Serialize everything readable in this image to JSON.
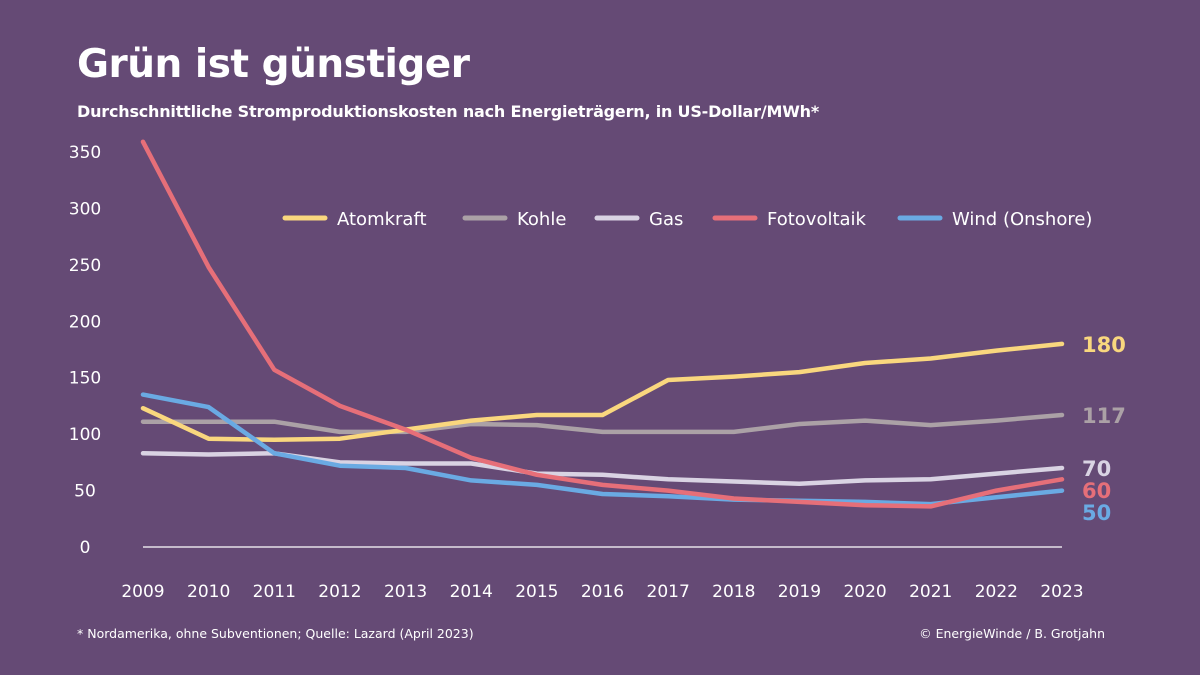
{
  "header": {
    "title": "Grün ist günstiger",
    "subtitle": "Durchschnittliche Stromproduktionskosten nach Energieträgern, in US-Dollar/MWh*"
  },
  "footer": {
    "footnote": "* Nordamerika, ohne Subventionen; Quelle: Lazard (April 2023)",
    "credit": "© EnergieWinde / B. Grotjahn"
  },
  "chart_data": {
    "type": "line",
    "title": "Grün ist günstiger",
    "subtitle": "Durchschnittliche Stromproduktionskosten nach Energieträgern, in US-Dollar/MWh*",
    "xlabel": "",
    "ylabel": "",
    "ylim": [
      0,
      350
    ],
    "yticks": [
      0,
      50,
      100,
      150,
      200,
      250,
      300,
      350
    ],
    "grid": false,
    "legend_position": "top-right",
    "x": [
      2009,
      2010,
      2011,
      2012,
      2013,
      2014,
      2015,
      2016,
      2017,
      2018,
      2019,
      2020,
      2021,
      2022,
      2023
    ],
    "series": [
      {
        "name": "Atomkraft",
        "color": "#f9d77e",
        "values": [
          123,
          96,
          95,
          96,
          104,
          112,
          117,
          117,
          148,
          151,
          155,
          163,
          167,
          174,
          180
        ],
        "end_label": "180"
      },
      {
        "name": "Kohle",
        "color": "#aba1a6",
        "values": [
          111,
          111,
          111,
          102,
          102,
          109,
          108,
          102,
          102,
          102,
          109,
          112,
          108,
          112,
          117
        ],
        "end_label": "117"
      },
      {
        "name": "Gas",
        "color": "#d9d3e3",
        "values": [
          83,
          82,
          83,
          75,
          74,
          74,
          65,
          64,
          60,
          58,
          56,
          59,
          60,
          65,
          70
        ],
        "end_label": "70"
      },
      {
        "name": "Fotovoltaik",
        "color": "#e66f79",
        "values": [
          359,
          248,
          157,
          125,
          104,
          79,
          64,
          55,
          50,
          43,
          40,
          37,
          36,
          50,
          60
        ],
        "end_label": "60"
      },
      {
        "name": "Wind (Onshore)",
        "color": "#6aaae3",
        "values": [
          135,
          124,
          83,
          72,
          70,
          59,
          55,
          47,
          45,
          42,
          41,
          40,
          38,
          44,
          50
        ],
        "end_label": "50"
      }
    ]
  }
}
